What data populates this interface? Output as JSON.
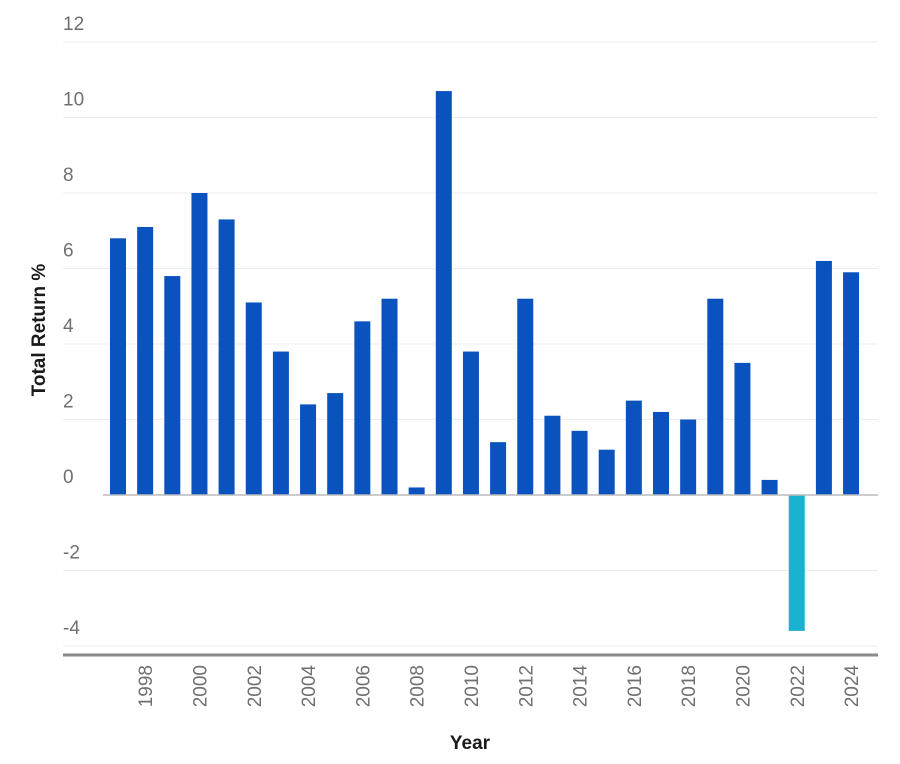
{
  "chart_data": {
    "type": "bar",
    "title": "",
    "xlabel": "Year",
    "ylabel": "Total Return %",
    "ylim": [
      -4,
      12
    ],
    "yticks": [
      12,
      10,
      8,
      6,
      4,
      2,
      0,
      -2,
      -4
    ],
    "ytick_labels": [
      "12",
      "10",
      "8",
      "6",
      "4",
      "2",
      "0",
      "-2",
      "-4"
    ],
    "grid": true,
    "categories": [
      "1997",
      "1998",
      "1999",
      "2000",
      "2001",
      "2002",
      "2003",
      "2004",
      "2005",
      "2006",
      "2007",
      "2008",
      "2009",
      "2010",
      "2011",
      "2012",
      "2013",
      "2014",
      "2015",
      "2016",
      "2017",
      "2018",
      "2019",
      "2020",
      "2021",
      "2022",
      "2023",
      "2024"
    ],
    "xtick_labels": [
      "1998",
      "2000",
      "2002",
      "2004",
      "2006",
      "2008",
      "2010",
      "2012",
      "2014",
      "2016",
      "2018",
      "2020",
      "2022",
      "2024"
    ],
    "values": [
      6.8,
      7.1,
      5.8,
      8.0,
      7.3,
      5.1,
      3.8,
      2.4,
      2.7,
      4.6,
      5.2,
      0.2,
      10.7,
      3.8,
      1.4,
      5.2,
      2.1,
      1.7,
      1.2,
      2.5,
      2.2,
      2.0,
      5.2,
      3.5,
      0.4,
      -3.6,
      6.2,
      5.9
    ],
    "colors": {
      "positive": "#0a52be",
      "negative": "#1ab3cf"
    }
  }
}
